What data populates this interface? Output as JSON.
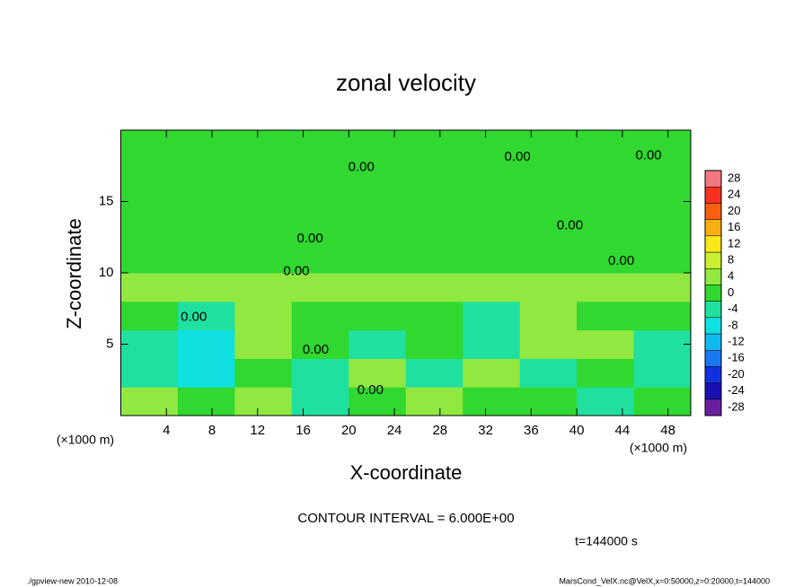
{
  "chart_data": {
    "type": "contour",
    "title": "zonal velocity",
    "x_label": "X-coordinate",
    "y_label": "Z-coordinate",
    "x_unit_left": "(×1000 m)",
    "x_unit_right": "(×1000 m)",
    "xlim": [
      0,
      50
    ],
    "ylim": [
      0,
      20
    ],
    "xticks": [
      4,
      8,
      12,
      16,
      20,
      24,
      28,
      32,
      36,
      40,
      44,
      48
    ],
    "yticks": [
      5,
      10,
      15
    ],
    "field": {
      "x": [
        2.5,
        7.5,
        12.5,
        17.5,
        22.5,
        27.5,
        32.5,
        37.5,
        42.5,
        47.5
      ],
      "z": [
        1,
        3,
        5,
        7,
        9,
        11,
        13,
        15,
        17,
        19
      ],
      "values": [
        [
          4,
          2,
          4,
          -4,
          0,
          4,
          2,
          0,
          -4,
          0
        ],
        [
          -4,
          -8,
          2,
          -4,
          4,
          -2,
          4,
          -4,
          2,
          -4
        ],
        [
          -2,
          -8,
          4,
          0,
          -2,
          2,
          -4,
          4,
          6,
          -2
        ],
        [
          0,
          -2,
          4,
          0,
          0,
          0,
          -4,
          4,
          0,
          0
        ],
        [
          4,
          4,
          4,
          4,
          4,
          4,
          4,
          4,
          4,
          4
        ],
        [
          2,
          2,
          2,
          0,
          2,
          2,
          0,
          2,
          2,
          2
        ],
        [
          0,
          2,
          2,
          2,
          2,
          2,
          2,
          2,
          2,
          0
        ],
        [
          0,
          0,
          0,
          0,
          0,
          0,
          0,
          0,
          0,
          0
        ],
        [
          0,
          0,
          0,
          2,
          0,
          0,
          0,
          0,
          0,
          0
        ],
        [
          0,
          0,
          2,
          2,
          0,
          0,
          0,
          0,
          0,
          0
        ]
      ]
    },
    "colorbar": {
      "ticks": [
        -28,
        -24,
        -20,
        -16,
        -12,
        -8,
        -4,
        0,
        4,
        8,
        12,
        16,
        20,
        24,
        28
      ],
      "colors": [
        "#6a1fa0",
        "#1a0fb0",
        "#1030e0",
        "#1878f0",
        "#10b8f0",
        "#10e0e0",
        "#20e0a0",
        "#30d830",
        "#90e840",
        "#c8f030",
        "#f8e818",
        "#f8b010",
        "#f86010",
        "#f83020",
        "#f07880"
      ]
    },
    "contour_labels": [
      {
        "x": 21.1,
        "z": 17.4,
        "label": "0.00"
      },
      {
        "x": 34.8,
        "z": 18.1,
        "label": "0.00"
      },
      {
        "x": 46.3,
        "z": 18.2,
        "label": "0.00"
      },
      {
        "x": 16.6,
        "z": 12.4,
        "label": "0.00"
      },
      {
        "x": 39.4,
        "z": 13.3,
        "label": "0.00"
      },
      {
        "x": 15.4,
        "z": 10.1,
        "label": "0.00"
      },
      {
        "x": 43.9,
        "z": 10.8,
        "label": "0.00"
      },
      {
        "x": 6.4,
        "z": 6.9,
        "label": "0.00"
      },
      {
        "x": 17.1,
        "z": 4.6,
        "label": "0.00"
      },
      {
        "x": 21.9,
        "z": 1.75,
        "label": "0.00"
      }
    ],
    "contour_interval": "CONTOUR INTERVAL = 6.000E+00",
    "time_label": "t=144000 s",
    "footer_left": "./gpview-new  2010-12-08",
    "footer_right": "MarsCond_VelX.nc@VelX,x=0:50000,z=0:20000,t=144000"
  }
}
